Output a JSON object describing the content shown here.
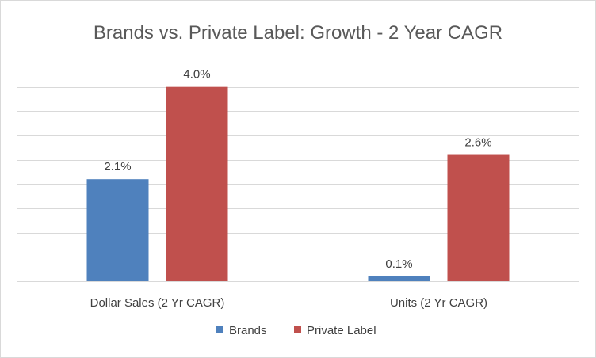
{
  "chart_data": {
    "type": "bar",
    "title": "Brands vs. Private Label: Growth - 2 Year CAGR",
    "categories": [
      "Dollar Sales (2 Yr CAGR)",
      "Units (2 Yr CAGR)"
    ],
    "series": [
      {
        "name": "Brands",
        "values": [
          2.1,
          0.1
        ],
        "labels": [
          "2.1%",
          "0.1%"
        ],
        "color": "#4f81bd"
      },
      {
        "name": "Private Label",
        "values": [
          4.0,
          2.6
        ],
        "labels": [
          "4.0%",
          "2.6%"
        ],
        "color": "#c0504d"
      }
    ],
    "xlabel": "",
    "ylabel": "",
    "ylim": [
      0,
      4.5
    ],
    "grid": true,
    "y_ticks_visible": false,
    "legend": "bottom"
  }
}
